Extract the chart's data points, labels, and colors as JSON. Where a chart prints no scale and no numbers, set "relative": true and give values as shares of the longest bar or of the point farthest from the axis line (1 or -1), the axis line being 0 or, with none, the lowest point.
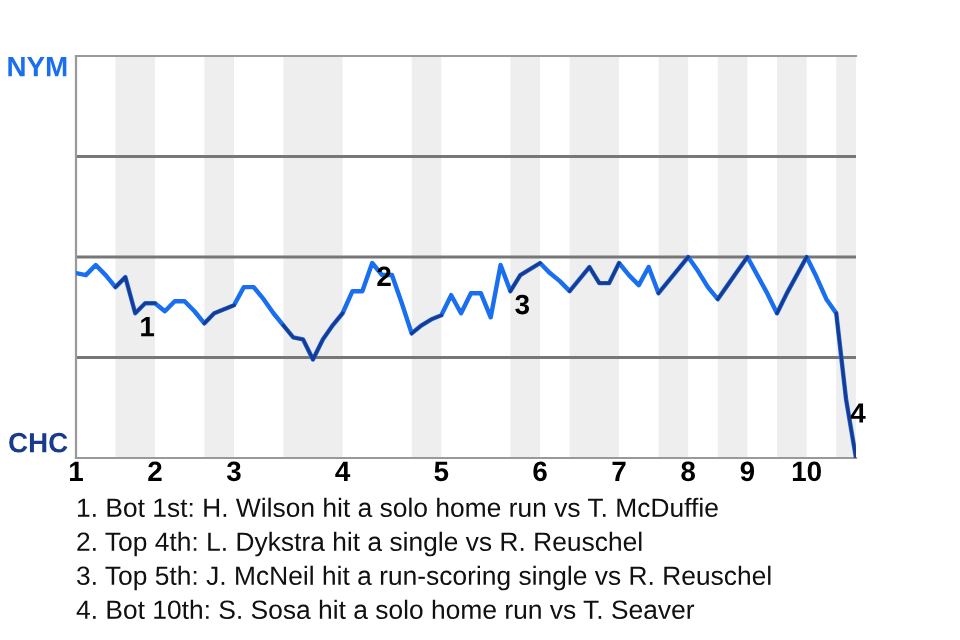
{
  "chart_data": {
    "type": "line",
    "relative": true,
    "categories": [
      "1",
      null,
      null,
      null,
      null,
      null,
      null,
      null,
      "2",
      null,
      null,
      null,
      null,
      null,
      null,
      null,
      "3",
      null,
      null,
      null,
      null,
      null,
      null,
      null,
      null,
      null,
      null,
      "4",
      null,
      null,
      null,
      null,
      null,
      null,
      null,
      null,
      null,
      "5",
      null,
      null,
      null,
      null,
      null,
      null,
      null,
      null,
      null,
      "6",
      null,
      null,
      null,
      null,
      null,
      null,
      null,
      "7",
      null,
      null,
      null,
      null,
      null,
      null,
      "8",
      null,
      null,
      null,
      null,
      null,
      "9",
      null,
      null,
      null,
      null,
      null,
      "10",
      null,
      null,
      null,
      null,
      null
    ],
    "ref_lines": [
      {
        "axis": "y",
        "value": 0.5,
        "color": "#777777"
      },
      {
        "axis": "y",
        "value": 1,
        "color": "#777777"
      },
      {
        "axis": "y",
        "value": 1.5,
        "color": "#777777"
      }
    ],
    "series": [
      {
        "color": "#1a6ff0",
        "values": [
          0.92,
          0.91,
          0.96,
          0.91,
          0.85,
          0.9,
          0.72,
          0.77,
          0.77,
          0.73,
          0.78,
          0.78,
          0.73,
          0.67,
          0.72,
          0.74,
          0.76,
          0.85,
          0.85,
          0.79,
          0.72,
          0.66,
          0.6,
          0.59,
          0.49,
          0.59,
          0.66,
          0.72,
          0.83,
          0.83,
          0.97,
          0.91,
          0.91,
          0.77,
          0.62,
          0.66,
          0.69,
          0.71,
          0.81,
          0.72,
          0.82,
          0.82,
          0.7,
          0.96,
          0.83,
          0.91,
          0.94,
          0.97,
          0.92,
          0.88,
          0.83,
          0.89,
          0.95,
          0.87,
          0.87,
          0.97,
          0.91,
          0.86,
          0.95,
          0.82,
          0.88,
          0.94,
          1,
          0.93,
          0.85,
          0.79,
          0.86,
          0.93,
          1,
          0.91,
          0.82,
          0.72,
          0.82,
          0.91,
          1,
          0.9,
          0.79,
          0.72,
          0.29,
          0
        ]
      },
      {
        "color": "#1a3a8c",
        "values": [
          null,
          null,
          null,
          null,
          0.85,
          0.9,
          0.72,
          0.77,
          0.77,
          null,
          null,
          null,
          null,
          0.67,
          0.72,
          0.74,
          0.76,
          null,
          null,
          null,
          null,
          0.66,
          0.6,
          0.59,
          0.49,
          0.59,
          0.66,
          0.72,
          null,
          null,
          null,
          null,
          null,
          null,
          0.62,
          0.66,
          0.69,
          0.71,
          null,
          null,
          null,
          null,
          null,
          null,
          0.83,
          0.91,
          0.94,
          0.97,
          null,
          null,
          0.83,
          0.89,
          0.95,
          0.87,
          0.87,
          0.97,
          null,
          null,
          null,
          0.82,
          0.88,
          0.94,
          1,
          null,
          null,
          0.79,
          0.86,
          0.93,
          1,
          null,
          null,
          0.72,
          0.82,
          0.91,
          1,
          null,
          null,
          0.72,
          0.29,
          0
        ]
      }
    ],
    "annotations": [
      "NYM",
      "CHC",
      {
        "text": "1",
        "y": 0.72
      },
      {
        "text": "2",
        "y": 0.97
      },
      {
        "text": "3",
        "y": 0.83
      },
      {
        "text": "4",
        "y": 0.29
      },
      "1. Bot 1st: H. Wilson hit a solo home run vs T. McDuffie",
      "2. Top 4th: L. Dykstra hit a single vs R. Reuschel",
      "3. Top 5th: J. McNeil hit a run-scoring single vs R. Reuschel",
      "4. Bot 10th: S. Sosa hit a solo home run vs T. Seaver"
    ]
  }
}
